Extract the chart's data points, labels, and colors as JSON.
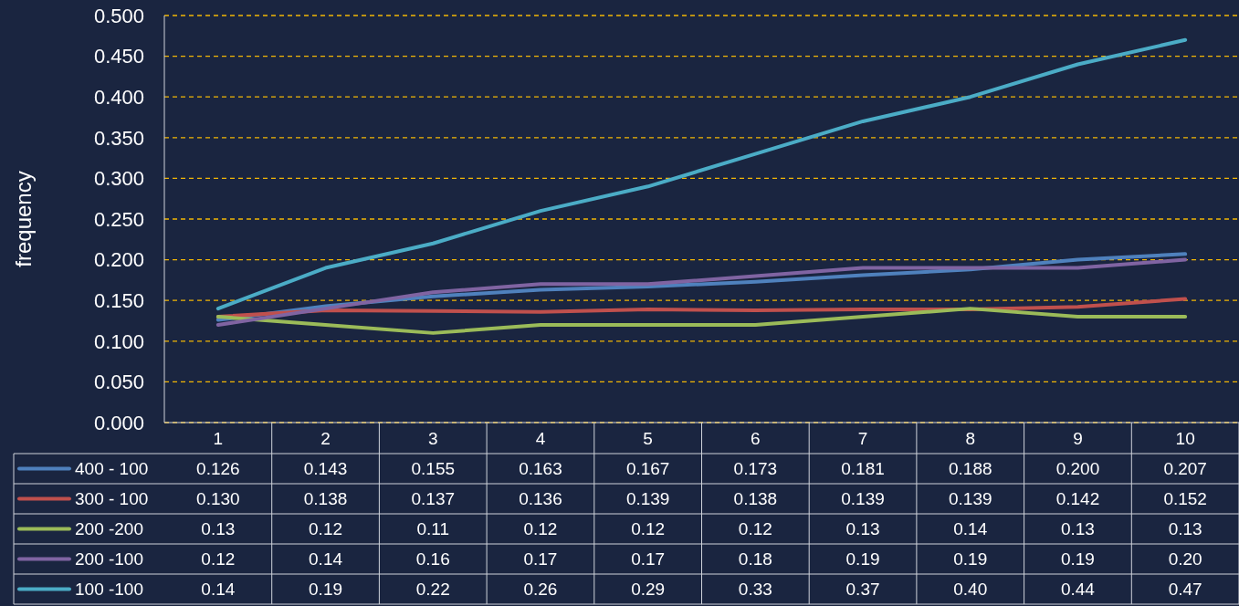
{
  "chart_data": {
    "type": "line",
    "ylabel": "frequency",
    "categories": [
      "1",
      "2",
      "3",
      "4",
      "5",
      "6",
      "7",
      "8",
      "9",
      "10"
    ],
    "ylim": [
      0,
      0.5
    ],
    "yticks": [
      {
        "value": 0,
        "label": "0.000"
      },
      {
        "value": 0.05,
        "label": "0.050"
      },
      {
        "value": 0.1,
        "label": "0.100"
      },
      {
        "value": 0.15,
        "label": "0.150"
      },
      {
        "value": 0.2,
        "label": "0.200"
      },
      {
        "value": 0.25,
        "label": "0.250"
      },
      {
        "value": 0.3,
        "label": "0.300"
      },
      {
        "value": 0.35,
        "label": "0.350"
      },
      {
        "value": 0.4,
        "label": "0.400"
      },
      {
        "value": 0.45,
        "label": "0.450"
      },
      {
        "value": 0.5,
        "label": "0.500"
      }
    ],
    "grid": "y",
    "legend": "bottom",
    "marker": "none",
    "line_style": "solid",
    "data_labels": true,
    "series": [
      {
        "name": "400 - 100",
        "color": "#4f81bd",
        "values": [
          0.126,
          0.143,
          0.155,
          0.163,
          0.167,
          0.173,
          0.181,
          0.188,
          0.2,
          0.207
        ],
        "value_labels": [
          "0.126",
          "0.143",
          "0.155",
          "0.163",
          "0.167",
          "0.173",
          "0.181",
          "0.188",
          "0.200",
          "0.207"
        ]
      },
      {
        "name": "300 - 100",
        "color": "#c0504d",
        "values": [
          0.13,
          0.138,
          0.137,
          0.136,
          0.139,
          0.138,
          0.139,
          0.139,
          0.142,
          0.152
        ],
        "value_labels": [
          "0.130",
          "0.138",
          "0.137",
          "0.136",
          "0.139",
          "0.138",
          "0.139",
          "0.139",
          "0.142",
          "0.152"
        ]
      },
      {
        "name": "200 -200",
        "color": "#9bbb59",
        "values": [
          0.13,
          0.12,
          0.11,
          0.12,
          0.12,
          0.12,
          0.13,
          0.14,
          0.13,
          0.13
        ],
        "value_labels": [
          "0.13",
          "0.12",
          "0.11",
          "0.12",
          "0.12",
          "0.12",
          "0.13",
          "0.14",
          "0.13",
          "0.13"
        ]
      },
      {
        "name": "200 -100",
        "color": "#8064a2",
        "values": [
          0.12,
          0.14,
          0.16,
          0.17,
          0.17,
          0.18,
          0.19,
          0.19,
          0.19,
          0.2
        ],
        "value_labels": [
          "0.12",
          "0.14",
          "0.16",
          "0.17",
          "0.17",
          "0.18",
          "0.19",
          "0.19",
          "0.19",
          "0.20"
        ]
      },
      {
        "name": "100 -100",
        "color": "#4bacc6",
        "values": [
          0.14,
          0.19,
          0.22,
          0.26,
          0.29,
          0.33,
          0.37,
          0.4,
          0.44,
          0.47
        ],
        "value_labels": [
          "0.14",
          "0.19",
          "0.22",
          "0.26",
          "0.29",
          "0.33",
          "0.37",
          "0.40",
          "0.44",
          "0.47"
        ]
      }
    ]
  }
}
